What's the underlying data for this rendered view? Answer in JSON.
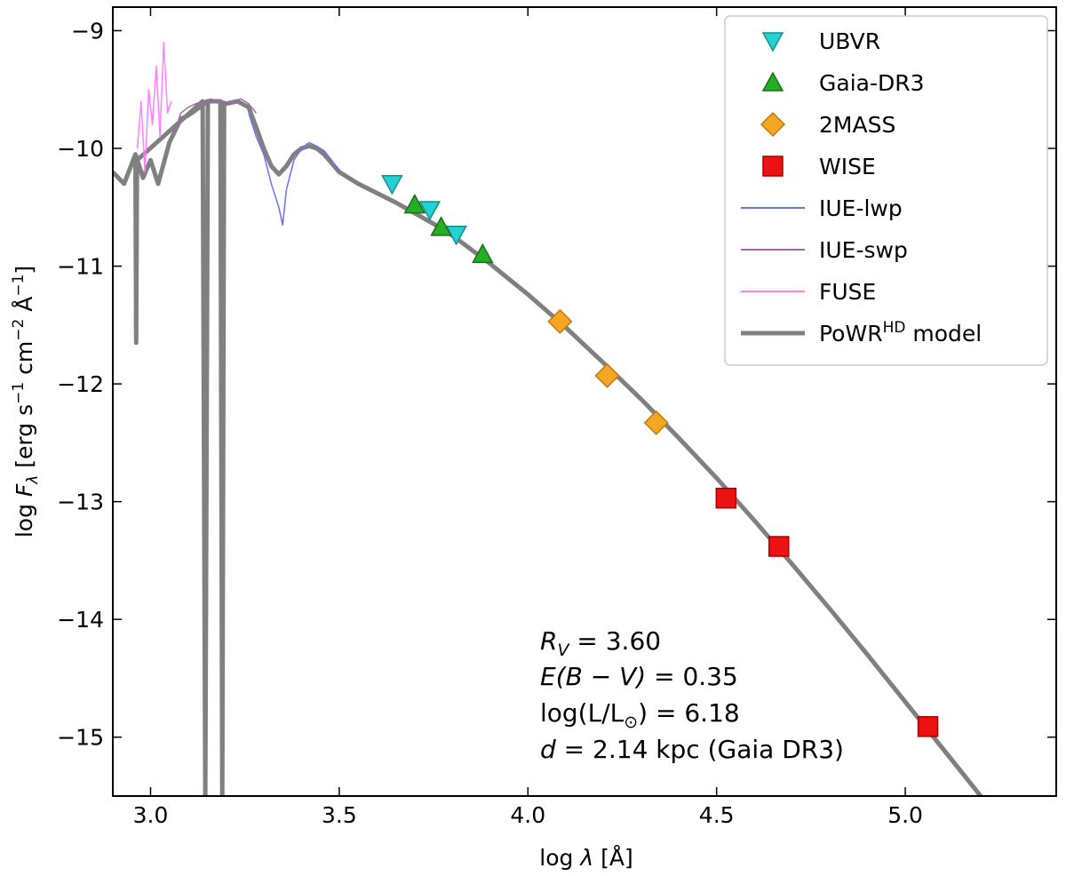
{
  "chart_data": {
    "type": "line",
    "title": "",
    "xlabel": "log λ [Å]",
    "ylabel": "log F_λ [erg s^-1 cm^-2 Å^-1]",
    "xlim": [
      2.9,
      5.4
    ],
    "ylim": [
      -15.5,
      -8.8
    ],
    "xticks": [
      3.0,
      3.5,
      4.0,
      4.5,
      5.0
    ],
    "xtick_labels": [
      "3.0",
      "3.5",
      "4.0",
      "4.5",
      "5.0"
    ],
    "yticks": [
      -9,
      -10,
      -11,
      -12,
      -13,
      -14,
      -15
    ],
    "ytick_labels": [
      "−9",
      "−10",
      "−11",
      "−12",
      "−13",
      "−14",
      "−15"
    ],
    "grid": false,
    "legend_position": "top-right",
    "legend": [
      {
        "label": "UBVR",
        "kind": "marker",
        "marker": "triangle-down",
        "color": "#22d3d3"
      },
      {
        "label": "Gaia-DR3",
        "kind": "marker",
        "marker": "triangle-up",
        "color": "#22b022"
      },
      {
        "label": "2MASS",
        "kind": "marker",
        "marker": "diamond",
        "color": "#f5a623"
      },
      {
        "label": "WISE",
        "kind": "marker",
        "marker": "square",
        "color": "#ee1111"
      },
      {
        "label": "IUE-lwp",
        "kind": "line",
        "color": "#6b72f0"
      },
      {
        "label": "IUE-swp",
        "kind": "line",
        "color": "#a468a8"
      },
      {
        "label": "FUSE",
        "kind": "line",
        "color": "#ff80ff"
      },
      {
        "label": "PoWR",
        "label_sup": "HD",
        "label_suffix": " model",
        "kind": "line",
        "color": "#808080"
      }
    ],
    "points": [
      {
        "series": "UBVR",
        "marker": "triangle-down",
        "color": "#22d3d3",
        "x": [
          3.64,
          3.74,
          3.81
        ],
        "y": [
          -10.3,
          -10.52,
          -10.73
        ]
      },
      {
        "series": "Gaia-DR3",
        "marker": "triangle-up",
        "color": "#22b022",
        "x": [
          3.7,
          3.77,
          3.88
        ],
        "y": [
          -10.48,
          -10.67,
          -10.9
        ]
      },
      {
        "series": "2MASS",
        "marker": "diamond",
        "color": "#f5a623",
        "x": [
          4.085,
          4.21,
          4.34
        ],
        "y": [
          -11.47,
          -11.93,
          -12.33
        ]
      },
      {
        "series": "WISE",
        "marker": "square",
        "color": "#ee1111",
        "x": [
          4.525,
          4.665,
          5.06
        ],
        "y": [
          -12.97,
          -13.38,
          -14.91
        ]
      }
    ],
    "lines": [
      {
        "series": "PoWR model",
        "color": "#808080",
        "width": 5,
        "x": [
          2.9,
          2.93,
          2.96,
          2.98,
          3.0,
          3.02,
          3.05,
          3.08,
          3.1,
          3.13,
          3.15,
          3.18,
          3.2,
          3.23,
          3.26,
          3.28,
          3.3,
          3.32,
          3.34,
          3.36,
          3.38,
          3.4,
          3.42,
          3.44,
          3.46,
          3.5,
          3.55,
          3.6,
          3.65,
          3.7,
          3.75,
          3.8,
          3.85,
          3.9,
          3.95,
          4.0,
          4.05,
          4.1,
          4.15,
          4.2,
          4.3,
          4.4,
          4.5,
          4.6,
          4.7,
          4.8,
          4.9,
          5.0,
          5.1,
          5.2
        ],
        "y": [
          -10.2,
          -10.3,
          -10.05,
          -10.25,
          -10.1,
          -10.3,
          -9.95,
          -9.75,
          -9.72,
          -9.65,
          -9.6,
          -9.6,
          -9.62,
          -9.6,
          -9.65,
          -9.82,
          -10.0,
          -10.15,
          -10.22,
          -10.15,
          -10.05,
          -10.0,
          -9.98,
          -10.0,
          -10.05,
          -10.2,
          -10.3,
          -10.38,
          -10.46,
          -10.55,
          -10.64,
          -10.74,
          -10.86,
          -10.98,
          -11.11,
          -11.24,
          -11.38,
          -11.52,
          -11.67,
          -11.82,
          -12.13,
          -12.46,
          -12.8,
          -13.16,
          -13.53,
          -13.91,
          -14.3,
          -14.7,
          -15.1,
          -15.5
        ]
      },
      {
        "series": "PoWR model absorption",
        "color": "#808080",
        "width": 5,
        "x": [
          2.96,
          2.962,
          2.964,
          3.138,
          3.145,
          3.152,
          3.185,
          3.19,
          3.195
        ],
        "y": [
          -10.1,
          -11.65,
          -10.1,
          -9.6,
          -15.5,
          -9.6,
          -9.6,
          -15.5,
          -9.6
        ]
      },
      {
        "series": "IUE-lwp",
        "color": "#6b72f0",
        "width": 1.5,
        "x": [
          3.26,
          3.28,
          3.3,
          3.32,
          3.34,
          3.35,
          3.36,
          3.38,
          3.4,
          3.42,
          3.44,
          3.46,
          3.48,
          3.5
        ],
        "y": [
          -9.7,
          -9.9,
          -10.05,
          -10.3,
          -10.5,
          -10.65,
          -10.35,
          -10.1,
          -10.0,
          -9.95,
          -9.98,
          -10.02,
          -10.1,
          -10.2
        ]
      },
      {
        "series": "IUE-swp",
        "color": "#a468a8",
        "width": 1.5,
        "x": [
          3.06,
          3.08,
          3.1,
          3.12,
          3.14,
          3.16,
          3.18,
          3.2,
          3.22,
          3.24,
          3.26,
          3.28
        ],
        "y": [
          -9.9,
          -9.7,
          -9.65,
          -9.62,
          -9.6,
          -9.58,
          -9.6,
          -9.62,
          -9.6,
          -9.58,
          -9.62,
          -9.7
        ]
      },
      {
        "series": "FUSE",
        "color": "#ff80ff",
        "width": 1.5,
        "x": [
          2.965,
          2.975,
          2.985,
          2.995,
          3.005,
          3.015,
          3.025,
          3.035,
          3.045,
          3.055
        ],
        "y": [
          -10.0,
          -9.6,
          -10.2,
          -9.5,
          -9.8,
          -9.3,
          -9.9,
          -9.1,
          -9.7,
          -9.6
        ]
      }
    ],
    "annotations": {
      "rv_lhs": "R",
      "rv_sub": "V",
      "rv_rhs": " = 3.60",
      "ebv_lhs": "E",
      "ebv_mid": "(B − V)",
      "ebv_rhs": " = 0.35",
      "lum_text": "log(L/L",
      "lum_sub": "⊙",
      "lum_rhs": ") = 6.18",
      "d_lhs": "d",
      "d_rhs": " = 2.14 kpc (Gaia DR3)"
    }
  }
}
